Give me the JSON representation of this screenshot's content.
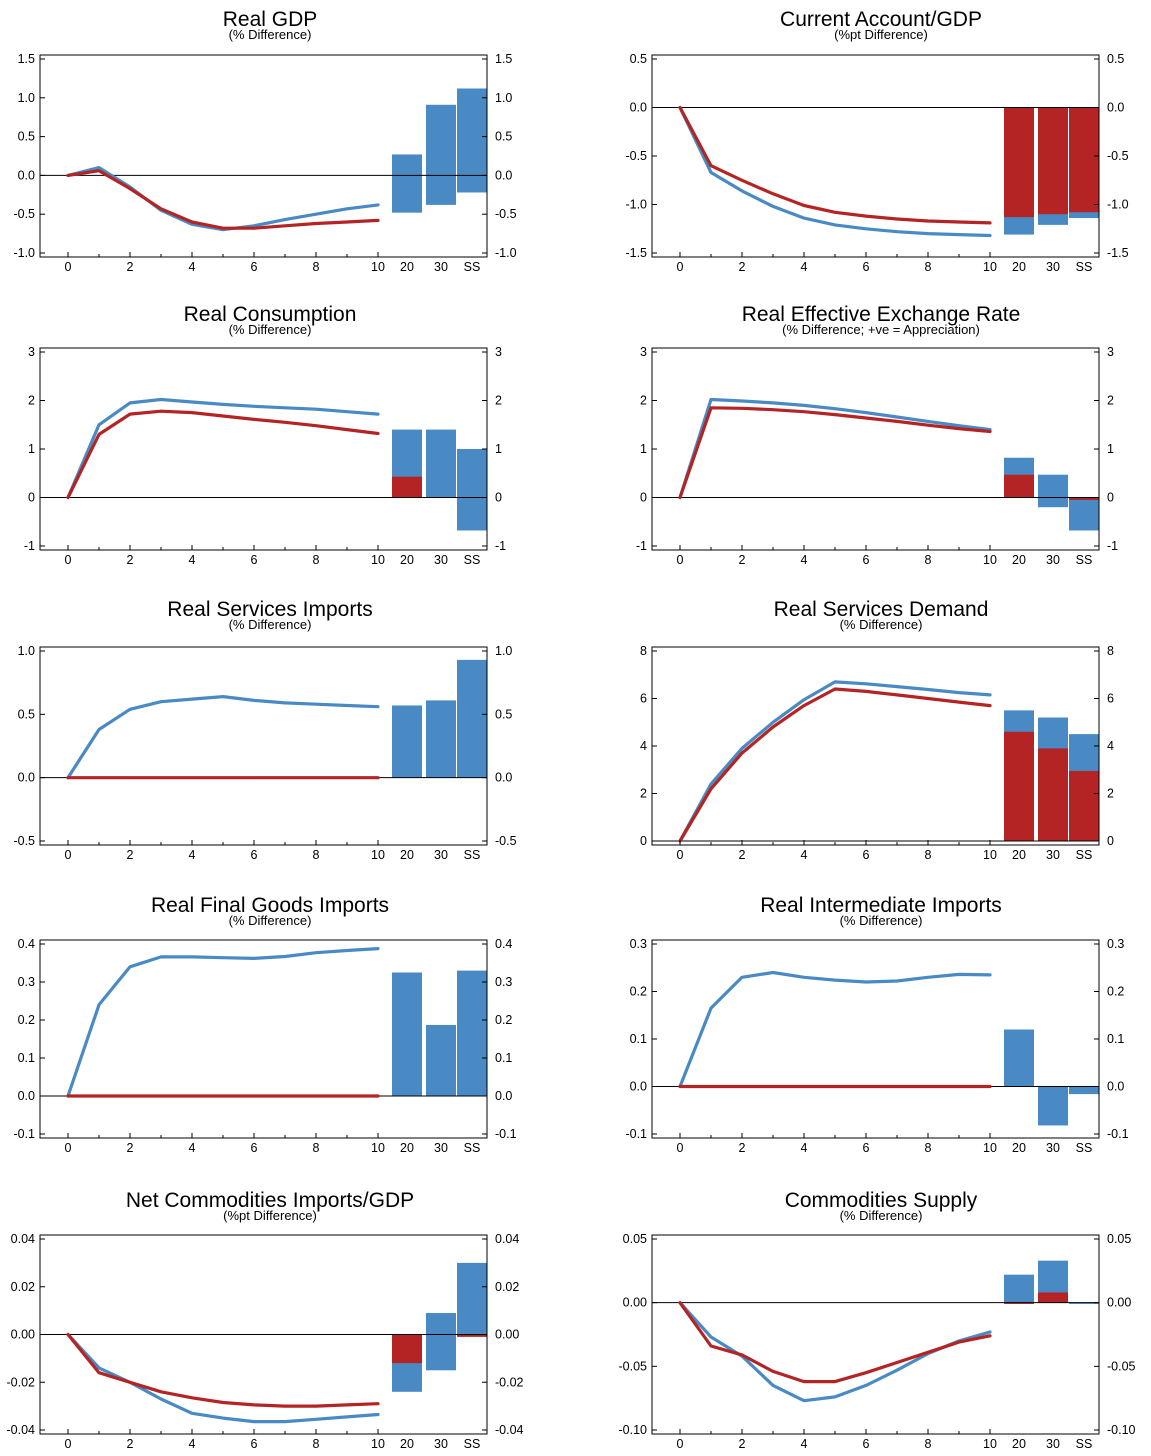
{
  "colors": {
    "blue": "#4a8ac4",
    "red": "#b52424",
    "axis": "#000000"
  },
  "chart_data": [
    {
      "type": "line",
      "title": "Real GDP",
      "subtitle": "(% Difference)",
      "yticks": [
        "1.5",
        "1.0",
        "0.5",
        "0.0",
        "-0.5",
        "-1.0"
      ],
      "ylim": [
        -1.0,
        1.5
      ],
      "xticks": [
        "0",
        "2",
        "4",
        "6",
        "8",
        "10"
      ],
      "bar_labels": [
        "20",
        "30",
        "SS"
      ],
      "x": [
        0,
        1,
        2,
        3,
        4,
        5,
        6,
        7,
        8,
        9,
        10
      ],
      "series": [
        {
          "color": "blue",
          "values": [
            0,
            0.1,
            -0.15,
            -0.45,
            -0.63,
            -0.7,
            -0.65,
            -0.57,
            -0.5,
            -0.43,
            -0.38
          ]
        },
        {
          "color": "red",
          "values": [
            0,
            0.06,
            -0.17,
            -0.43,
            -0.6,
            -0.68,
            -0.68,
            -0.65,
            -0.62,
            -0.6,
            -0.58
          ]
        }
      ],
      "bars": [
        {
          "blue": [
            -0.48,
            0.27
          ],
          "red": [
            0,
            0
          ]
        },
        {
          "blue": [
            -0.38,
            0.91
          ],
          "red": [
            0,
            0
          ]
        },
        {
          "blue": [
            -0.22,
            1.12
          ],
          "red": [
            0,
            0
          ]
        }
      ]
    },
    {
      "type": "line",
      "title": "Current Account/GDP",
      "subtitle": "(%pt Difference)",
      "yticks": [
        "0.5",
        "0.0",
        "-0.5",
        "-1.0",
        "-1.5"
      ],
      "ylim": [
        -1.5,
        0.5
      ],
      "xticks": [
        "0",
        "2",
        "4",
        "6",
        "8",
        "10"
      ],
      "bar_labels": [
        "20",
        "30",
        "SS"
      ],
      "x": [
        0,
        1,
        2,
        3,
        4,
        5,
        6,
        7,
        8,
        9,
        10
      ],
      "series": [
        {
          "color": "blue",
          "values": [
            0,
            -0.67,
            -0.86,
            -1.02,
            -1.14,
            -1.21,
            -1.25,
            -1.28,
            -1.3,
            -1.31,
            -1.32
          ]
        },
        {
          "color": "red",
          "values": [
            0,
            -0.6,
            -0.75,
            -0.89,
            -1.01,
            -1.08,
            -1.12,
            -1.15,
            -1.17,
            -1.18,
            -1.19
          ]
        }
      ],
      "bars": [
        {
          "blue": [
            -1.31,
            0
          ],
          "red": [
            -1.13,
            0
          ]
        },
        {
          "blue": [
            -1.21,
            0
          ],
          "red": [
            -1.1,
            0
          ]
        },
        {
          "blue": [
            -1.14,
            0
          ],
          "red": [
            -1.08,
            0
          ]
        }
      ]
    },
    {
      "type": "line",
      "title": "Real Consumption",
      "subtitle": "(% Difference)",
      "yticks": [
        "3",
        "2",
        "1",
        "0",
        "-1"
      ],
      "ylim": [
        -1,
        3
      ],
      "xticks": [
        "0",
        "2",
        "4",
        "6",
        "8",
        "10"
      ],
      "bar_labels": [
        "20",
        "30",
        "SS"
      ],
      "x": [
        0,
        1,
        2,
        3,
        4,
        5,
        6,
        7,
        8,
        9,
        10
      ],
      "series": [
        {
          "color": "blue",
          "values": [
            0,
            1.5,
            1.95,
            2.02,
            1.97,
            1.92,
            1.88,
            1.85,
            1.82,
            1.77,
            1.72
          ]
        },
        {
          "color": "red",
          "values": [
            0,
            1.3,
            1.72,
            1.78,
            1.75,
            1.68,
            1.61,
            1.55,
            1.48,
            1.4,
            1.32
          ]
        }
      ],
      "bars": [
        {
          "blue": [
            0,
            1.4
          ],
          "red": [
            0,
            0.43
          ]
        },
        {
          "blue": [
            0,
            1.4
          ],
          "red": [
            0,
            0
          ]
        },
        {
          "blue": [
            -0.68,
            1.0
          ],
          "red": [
            0,
            0
          ]
        }
      ]
    },
    {
      "type": "line",
      "title": "Real Effective Exchange Rate",
      "subtitle": "(% Difference; +ve = Appreciation)",
      "yticks": [
        "3",
        "2",
        "1",
        "0",
        "-1"
      ],
      "ylim": [
        -1,
        3
      ],
      "xticks": [
        "0",
        "2",
        "4",
        "6",
        "8",
        "10"
      ],
      "bar_labels": [
        "20",
        "30",
        "SS"
      ],
      "x": [
        0,
        1,
        2,
        3,
        4,
        5,
        6,
        7,
        8,
        9,
        10
      ],
      "series": [
        {
          "color": "blue",
          "values": [
            0,
            2.02,
            1.99,
            1.95,
            1.9,
            1.83,
            1.75,
            1.66,
            1.57,
            1.48,
            1.4
          ]
        },
        {
          "color": "red",
          "values": [
            0,
            1.85,
            1.84,
            1.81,
            1.77,
            1.71,
            1.64,
            1.57,
            1.49,
            1.42,
            1.36
          ]
        }
      ],
      "bars": [
        {
          "blue": [
            0,
            0.82
          ],
          "red": [
            0,
            0.47
          ]
        },
        {
          "blue": [
            -0.2,
            0.47
          ],
          "red": [
            0,
            0
          ]
        },
        {
          "blue": [
            -0.68,
            0
          ],
          "red": [
            -0.05,
            0
          ]
        }
      ]
    },
    {
      "type": "line",
      "title": "Real Services Imports",
      "subtitle": "(% Difference)",
      "yticks": [
        "1.0",
        "0.5",
        "0.0",
        "-0.5"
      ],
      "ylim": [
        -0.5,
        1.0
      ],
      "xticks": [
        "0",
        "2",
        "4",
        "6",
        "8",
        "10"
      ],
      "bar_labels": [
        "20",
        "30",
        "SS"
      ],
      "x": [
        0,
        1,
        2,
        3,
        4,
        5,
        6,
        7,
        8,
        9,
        10
      ],
      "series": [
        {
          "color": "blue",
          "values": [
            0,
            0.38,
            0.54,
            0.6,
            0.62,
            0.64,
            0.61,
            0.59,
            0.58,
            0.57,
            0.56
          ]
        },
        {
          "color": "red",
          "values": [
            0,
            0,
            0,
            0,
            0,
            0,
            0,
            0,
            0,
            0,
            0
          ]
        }
      ],
      "bars": [
        {
          "blue": [
            0,
            0.57
          ],
          "red": [
            0,
            0
          ]
        },
        {
          "blue": [
            0,
            0.61
          ],
          "red": [
            0,
            0
          ]
        },
        {
          "blue": [
            0,
            0.93
          ],
          "red": [
            0,
            0
          ]
        }
      ]
    },
    {
      "type": "line",
      "title": "Real Services Demand",
      "subtitle": "(% Difference)",
      "yticks": [
        "8",
        "6",
        "4",
        "2",
        "0"
      ],
      "ylim": [
        0,
        8
      ],
      "xticks": [
        "0",
        "2",
        "4",
        "6",
        "8",
        "10"
      ],
      "bar_labels": [
        "20",
        "30",
        "SS"
      ],
      "x": [
        0,
        1,
        2,
        3,
        4,
        5,
        6,
        7,
        8,
        9,
        10
      ],
      "series": [
        {
          "color": "blue",
          "values": [
            0,
            2.4,
            3.9,
            5.0,
            5.95,
            6.7,
            6.62,
            6.5,
            6.38,
            6.25,
            6.15
          ]
        },
        {
          "color": "red",
          "values": [
            0,
            2.2,
            3.7,
            4.8,
            5.7,
            6.4,
            6.3,
            6.15,
            6.0,
            5.85,
            5.7
          ]
        }
      ],
      "bars": [
        {
          "blue": [
            0,
            5.5
          ],
          "red": [
            0,
            4.6
          ]
        },
        {
          "blue": [
            0,
            5.2
          ],
          "red": [
            0,
            3.9
          ]
        },
        {
          "blue": [
            0,
            4.5
          ],
          "red": [
            0,
            2.95
          ]
        }
      ]
    },
    {
      "type": "line",
      "title": "Real Final Goods Imports",
      "subtitle": "(% Difference)",
      "yticks": [
        "0.4",
        "0.3",
        "0.2",
        "0.1",
        "0.0",
        "-0.1"
      ],
      "ylim": [
        -0.1,
        0.4
      ],
      "xticks": [
        "0",
        "2",
        "4",
        "6",
        "8",
        "10"
      ],
      "bar_labels": [
        "20",
        "30",
        "SS"
      ],
      "x": [
        0,
        1,
        2,
        3,
        4,
        5,
        6,
        7,
        8,
        9,
        10
      ],
      "series": [
        {
          "color": "blue",
          "values": [
            0,
            0.24,
            0.34,
            0.366,
            0.366,
            0.364,
            0.362,
            0.367,
            0.377,
            0.383,
            0.388
          ]
        },
        {
          "color": "red",
          "values": [
            0,
            0,
            0,
            0,
            0,
            0,
            0,
            0,
            0,
            0,
            0
          ]
        }
      ],
      "bars": [
        {
          "blue": [
            0,
            0.325
          ],
          "red": [
            0,
            0
          ]
        },
        {
          "blue": [
            0,
            0.187
          ],
          "red": [
            0,
            0
          ]
        },
        {
          "blue": [
            0,
            0.33
          ],
          "red": [
            0,
            0
          ]
        }
      ]
    },
    {
      "type": "line",
      "title": "Real Intermediate Imports",
      "subtitle": "(% Difference)",
      "yticks": [
        "0.3",
        "0.2",
        "0.1",
        "0.0",
        "-0.1"
      ],
      "ylim": [
        -0.1,
        0.3
      ],
      "xticks": [
        "0",
        "2",
        "4",
        "6",
        "8",
        "10"
      ],
      "bar_labels": [
        "20",
        "30",
        "SS"
      ],
      "x": [
        0,
        1,
        2,
        3,
        4,
        5,
        6,
        7,
        8,
        9,
        10
      ],
      "series": [
        {
          "color": "blue",
          "values": [
            0,
            0.165,
            0.23,
            0.24,
            0.23,
            0.224,
            0.22,
            0.222,
            0.23,
            0.236,
            0.235
          ]
        },
        {
          "color": "red",
          "values": [
            0,
            0,
            0,
            0,
            0,
            0,
            0,
            0,
            0,
            0,
            0
          ]
        }
      ],
      "bars": [
        {
          "blue": [
            0,
            0.12
          ],
          "red": [
            0,
            0
          ]
        },
        {
          "blue": [
            -0.082,
            0
          ],
          "red": [
            0,
            0
          ]
        },
        {
          "blue": [
            -0.016,
            0
          ],
          "red": [
            0,
            0
          ]
        }
      ]
    },
    {
      "type": "line",
      "title": "Net Commodities Imports/GDP",
      "subtitle": "(%pt Difference)",
      "yticks": [
        "0.04",
        "0.02",
        "0.00",
        "-0.02",
        "-0.04"
      ],
      "ylim": [
        -0.04,
        0.04
      ],
      "xticks": [
        "0",
        "2",
        "4",
        "6",
        "8",
        "10"
      ],
      "bar_labels": [
        "20",
        "30",
        "SS"
      ],
      "x": [
        0,
        1,
        2,
        3,
        4,
        5,
        6,
        7,
        8,
        9,
        10
      ],
      "series": [
        {
          "color": "blue",
          "values": [
            0,
            -0.014,
            -0.02,
            -0.027,
            -0.033,
            -0.035,
            -0.0365,
            -0.0365,
            -0.0355,
            -0.0345,
            -0.0335
          ]
        },
        {
          "color": "red",
          "values": [
            0,
            -0.016,
            -0.02,
            -0.024,
            -0.0265,
            -0.0285,
            -0.0295,
            -0.03,
            -0.03,
            -0.0295,
            -0.029
          ]
        }
      ],
      "bars": [
        {
          "blue": [
            -0.024,
            0
          ],
          "red": [
            -0.012,
            0
          ]
        },
        {
          "blue": [
            -0.015,
            0.009
          ],
          "red": [
            0,
            0
          ]
        },
        {
          "blue": [
            0,
            0.03
          ],
          "red": [
            -0.001,
            0
          ]
        }
      ]
    },
    {
      "type": "line",
      "title": "Commodities Supply",
      "subtitle": "(% Difference)",
      "yticks": [
        "0.05",
        "0.00",
        "-0.05",
        "-0.10"
      ],
      "ylim": [
        -0.1,
        0.05
      ],
      "xticks": [
        "0",
        "2",
        "4",
        "6",
        "8",
        "10"
      ],
      "bar_labels": [
        "20",
        "30",
        "SS"
      ],
      "x": [
        0,
        1,
        2,
        3,
        4,
        5,
        6,
        7,
        8,
        9,
        10
      ],
      "series": [
        {
          "color": "blue",
          "values": [
            0,
            -0.027,
            -0.042,
            -0.065,
            -0.077,
            -0.074,
            -0.065,
            -0.053,
            -0.04,
            -0.03,
            -0.023
          ]
        },
        {
          "color": "red",
          "values": [
            0,
            -0.034,
            -0.041,
            -0.054,
            -0.062,
            -0.062,
            -0.055,
            -0.047,
            -0.039,
            -0.031,
            -0.026
          ]
        }
      ],
      "bars": [
        {
          "blue": [
            0,
            0.022
          ],
          "red": [
            -0.001,
            0
          ]
        },
        {
          "blue": [
            0,
            0.033
          ],
          "red": [
            0,
            0.008
          ]
        },
        {
          "blue": [
            -0.001,
            0
          ],
          "red": [
            0,
            0
          ]
        }
      ]
    }
  ]
}
